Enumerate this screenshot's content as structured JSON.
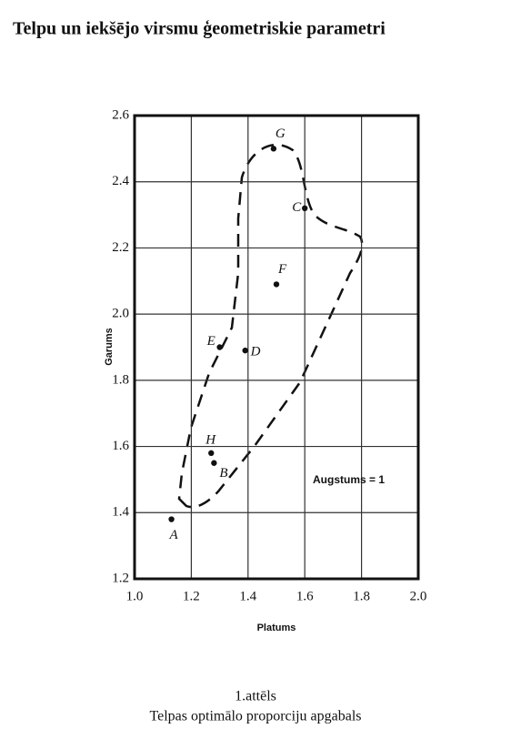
{
  "page_title": "Telpu un iekšējo virsmu ģeometriskie parametri",
  "caption": {
    "number": "1.attēls",
    "text": "Telpas optimālo proporciju apgabals"
  },
  "chart_data": {
    "type": "scatter",
    "xlabel": "Platums",
    "ylabel": "Garums",
    "annotation": "Augstums  = 1",
    "series": [
      {
        "color": "#111111",
        "labels": [
          "A",
          "B",
          "C",
          "D",
          "E",
          "F",
          "G",
          "H"
        ],
        "x": [
          1.13,
          1.28,
          1.6,
          1.39,
          1.3,
          1.5,
          1.49,
          1.27
        ],
        "values": [
          1.38,
          1.55,
          2.32,
          1.89,
          1.9,
          2.09,
          2.5,
          1.58
        ]
      }
    ],
    "xlim": [
      1.0,
      2.0
    ],
    "xticks": [
      {
        "value": 1,
        "label": "1.0"
      },
      1.2,
      1.4,
      1.6,
      1.8,
      {
        "value": 2,
        "label": "2.0"
      }
    ],
    "ylim": [
      1.2,
      2.6
    ],
    "yticks": [
      1.2,
      1.4,
      1.6,
      1.8,
      {
        "value": 2,
        "label": "2.0"
      },
      2.2,
      2.4,
      2.6
    ],
    "grid": true
  }
}
